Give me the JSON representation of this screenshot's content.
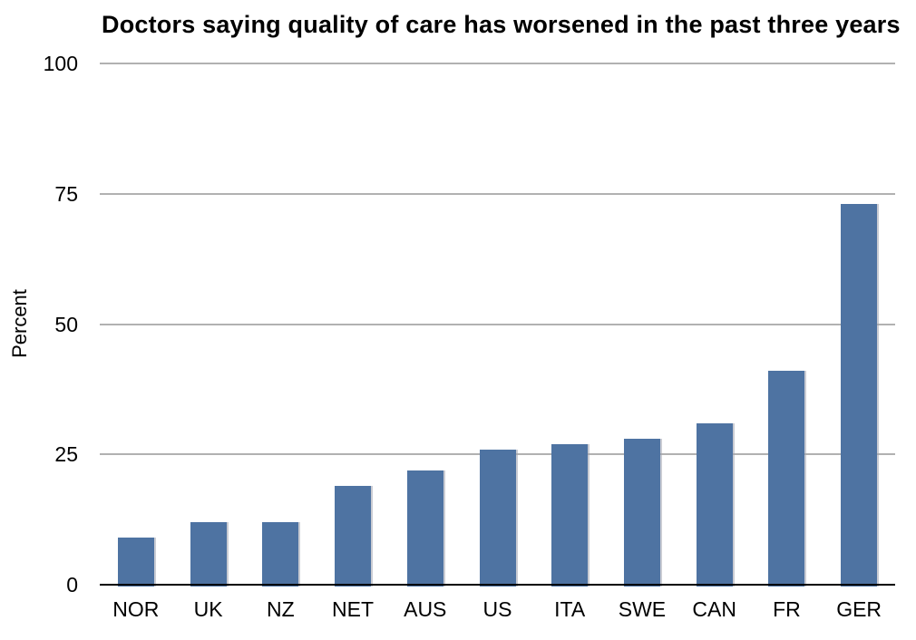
{
  "chart_data": {
    "type": "bar",
    "title": "Doctors saying quality of care has worsened in the past three years",
    "xlabel": "",
    "ylabel": "Percent",
    "categories": [
      "NOR",
      "UK",
      "NZ",
      "NET",
      "AUS",
      "US",
      "ITA",
      "SWE",
      "CAN",
      "FR",
      "GER"
    ],
    "values": [
      9,
      12,
      12,
      19,
      22,
      26,
      27,
      28,
      31,
      41,
      73
    ],
    "yticks": [
      0,
      25,
      50,
      75,
      100
    ],
    "ylim": [
      0,
      100
    ],
    "grid": true,
    "legend": "none",
    "colors": {
      "bar": "#4e73a2",
      "gridline": "#b1b1b1",
      "axis": "#000000",
      "text": "#000000",
      "background": "#ffffff"
    }
  }
}
